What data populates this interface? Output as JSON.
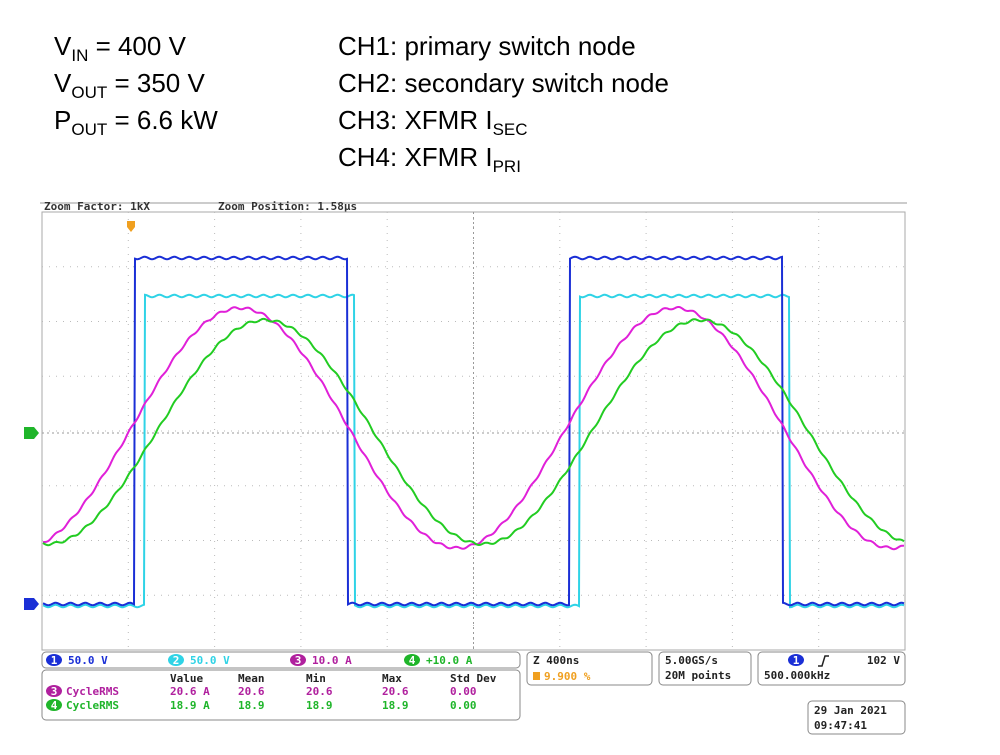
{
  "header": {
    "left": [
      {
        "main": "V",
        "sub": "IN",
        "rest": " = 400 V"
      },
      {
        "main": "V",
        "sub": "OUT",
        "rest": " = 350 V"
      },
      {
        "main": "P",
        "sub": "OUT",
        "rest": " = 6.6 kW"
      }
    ],
    "right": [
      {
        "main": "CH1: primary switch node"
      },
      {
        "main": "CH2: secondary switch node"
      },
      {
        "main": "CH3: XFMR I",
        "sub": "SEC"
      },
      {
        "main": "CH4: XFMR I",
        "sub": "PRI"
      }
    ]
  },
  "scope": {
    "zoom_factor": "Zoom Factor: 1kX",
    "zoom_position": "Zoom Position: 1.58µs",
    "channels": [
      {
        "id": "1",
        "scale": "50.0 V",
        "color": "#1a2fd6"
      },
      {
        "id": "2",
        "scale": "50.0 V",
        "color": "#2fd3e6"
      },
      {
        "id": "3",
        "scale": "10.0 A",
        "color": "#b0209e"
      },
      {
        "id": "4",
        "scale": "+10.0 A",
        "color": "#1fb52a"
      }
    ],
    "timebase": "Z 400ns",
    "trigger_position": "9.900 %",
    "sample_rate": "5.00GS/s",
    "record_length": "20M points",
    "trigger_channel": "1",
    "trigger_level": "102 V",
    "frequency": "500.000kHz",
    "measurements": {
      "columns": [
        "Value",
        "Mean",
        "Min",
        "Max",
        "Std Dev"
      ],
      "rows": [
        {
          "channel": "3",
          "name": "CycleRMS",
          "cells": [
            "20.6 A",
            "20.6",
            "20.6",
            "20.6",
            "0.00"
          ]
        },
        {
          "channel": "4",
          "name": "CycleRMS",
          "cells": [
            "18.9 A",
            "18.9",
            "18.9",
            "18.9",
            "0.00"
          ]
        }
      ]
    },
    "date": "29 Jan 2021",
    "time": "09:47:41"
  }
}
